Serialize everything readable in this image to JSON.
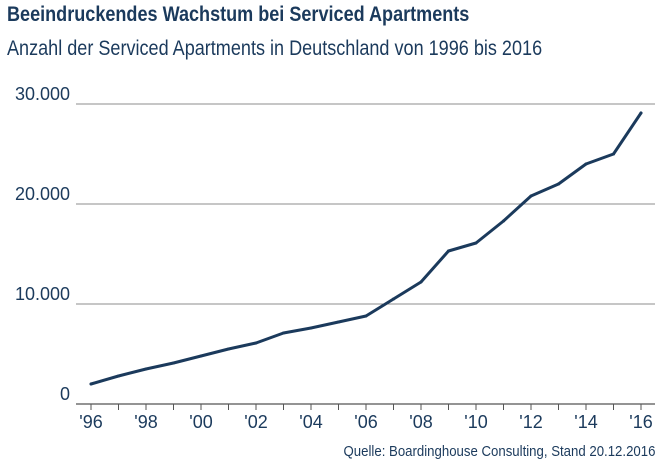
{
  "header": {
    "title": "Beeindruckendes Wachstum bei Serviced Apartments",
    "subtitle": "Anzahl der Serviced Apartments in Deutschland von 1996 bis 2016"
  },
  "footer": {
    "source": "Quelle: Boardinghouse Consulting, Stand 20.12.2016"
  },
  "colors": {
    "line": "#1b3a5c",
    "text": "#1b3a5c",
    "grid": "#8c8c8c",
    "axis": "#555555"
  },
  "chart_data": {
    "type": "line",
    "title": "Beeindruckendes Wachstum bei Serviced Apartments",
    "subtitle": "Anzahl der Serviced Apartments in Deutschland von 1996 bis 2016",
    "xlabel": "",
    "ylabel": "",
    "x": [
      1996,
      1997,
      1998,
      1999,
      2000,
      2001,
      2002,
      2003,
      2004,
      2005,
      2006,
      2007,
      2008,
      2009,
      2010,
      2011,
      2012,
      2013,
      2014,
      2015,
      2016
    ],
    "series": [
      {
        "values": [
          2000,
          2800,
          3500,
          4100,
          4800,
          5500,
          6100,
          7100,
          7600,
          8200,
          8800,
          10500,
          12200,
          15300,
          16100,
          18300,
          20800,
          22000,
          24000,
          25000,
          29100
        ]
      }
    ],
    "ylim": [
      0,
      30000
    ],
    "yticks": [
      0,
      10000,
      20000,
      30000
    ],
    "ytick_labels": [
      "0",
      "10.000",
      "20.000",
      "30.000"
    ],
    "xtick_labels": [
      "'96",
      "'98",
      "'00",
      "'02",
      "'04",
      "'06",
      "'08",
      "'10",
      "'12",
      "'14",
      "'16"
    ],
    "grid": true,
    "legend": "none"
  }
}
